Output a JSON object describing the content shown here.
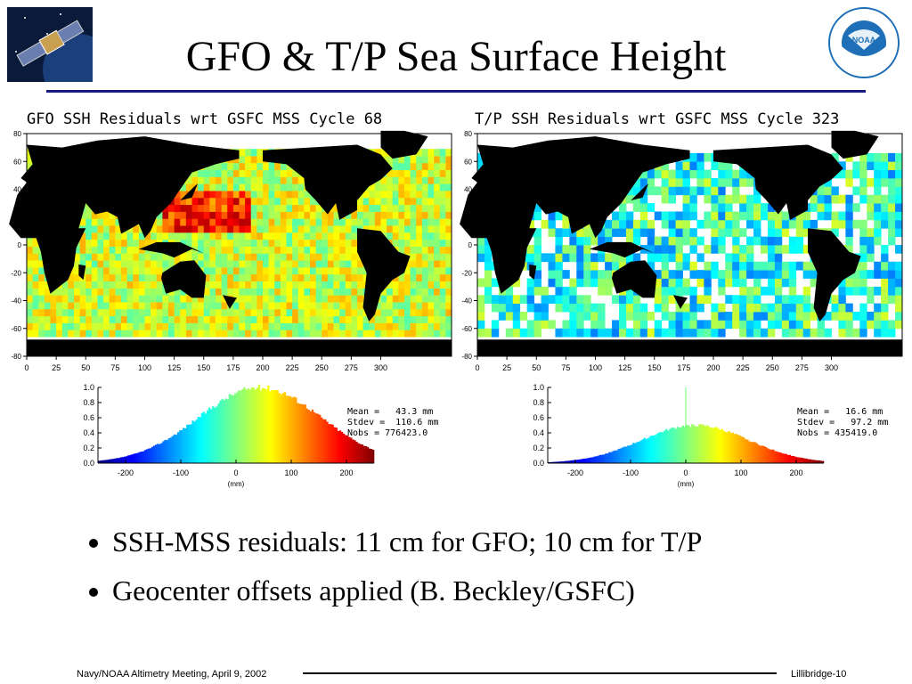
{
  "slide": {
    "title": "GFO & T/P Sea Surface Height",
    "bullets": [
      "SSH-MSS residuals: 11 cm for GFO; 10 cm for T/P",
      "Geocenter offsets applied (B. Beckley/GSFC)"
    ],
    "footer_left": "Navy/NOAA Altimetry Meeting, April 9, 2002",
    "footer_right": "Lillibridge-10",
    "colors": {
      "rule": "#1a1a80",
      "land": "#000000"
    }
  },
  "chart_data": [
    {
      "type": "heatmap",
      "title": "GFO SSH Residuals wrt GSFC MSS Cycle 68",
      "x_ticks": [
        "0",
        "25",
        "50",
        "75",
        "100",
        "125",
        "150",
        "175",
        "200",
        "225",
        "250",
        "275",
        "300"
      ],
      "y_ticks": [
        "80",
        "60",
        "40",
        "20",
        "0",
        "-20",
        "-40",
        "-60",
        "-80"
      ],
      "xlim": [
        0,
        360
      ],
      "ylim": [
        -80,
        80
      ]
    },
    {
      "type": "heatmap",
      "title": "T/P SSH Residuals wrt GSFC MSS Cycle 323",
      "x_ticks": [
        "0",
        "25",
        "50",
        "75",
        "100",
        "125",
        "150",
        "175",
        "200",
        "225",
        "250",
        "275",
        "300"
      ],
      "y_ticks": [
        "80",
        "60",
        "40",
        "20",
        "0",
        "-20",
        "-40",
        "-60",
        "-80"
      ],
      "xlim": [
        0,
        360
      ],
      "ylim": [
        -80,
        80
      ]
    },
    {
      "type": "bar",
      "title": "",
      "xlabel": "(mm)",
      "x_ticks": [
        "-200",
        "-100",
        "0",
        "100",
        "200"
      ],
      "y_ticks": [
        "1.0",
        "0.8",
        "0.6",
        "0.4",
        "0.2",
        "0.0"
      ],
      "xlim": [
        -250,
        250
      ],
      "ylim": [
        0,
        1.0
      ],
      "mean": 43.3,
      "stdev": 110.6,
      "peak": 1.0,
      "stats": [
        "Mean =   43.3 mm",
        "Stdev =  110.6 mm",
        "Nobs = 776423.0"
      ]
    },
    {
      "type": "bar",
      "title": "",
      "xlabel": "(mm)",
      "x_ticks": [
        "-200",
        "-100",
        "0",
        "100",
        "200"
      ],
      "y_ticks": [
        "1.0",
        "0.8",
        "0.6",
        "0.4",
        "0.2",
        "0.0"
      ],
      "xlim": [
        -250,
        250
      ],
      "ylim": [
        0,
        1.0
      ],
      "mean": 16.6,
      "stdev": 97.2,
      "peak": 0.5,
      "spike_x": 0,
      "spike_y": 1.0,
      "stats": [
        "Mean =   16.6 mm",
        "Stdev =   97.2 mm",
        "Nobs = 435419.0"
      ]
    }
  ]
}
